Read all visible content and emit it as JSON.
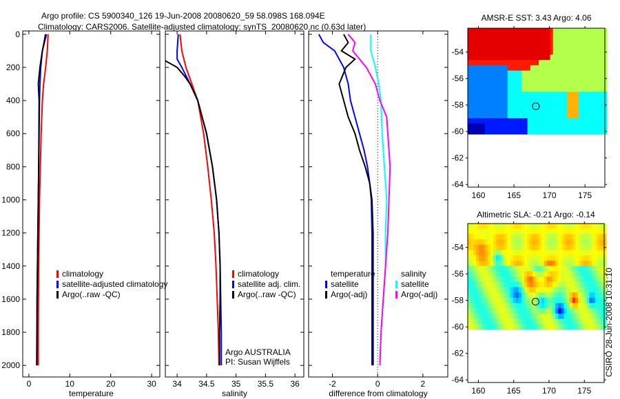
{
  "title": {
    "line1": "Argo profile: CS 5900340_126 19-Jun-2008 20080620_59 58.098S 168.094E",
    "line2": "Climatology: CARS2006. Satellite-adjusted climatology: synTS_20080620.nc (0.63d later)"
  },
  "colors": {
    "climatology": "#ff0000",
    "satellite": "#0000ff",
    "argo": "#000000",
    "sal_satellite": "#00ffff",
    "sal_argo": "#ff00ff"
  },
  "chart_data": [
    {
      "type": "line",
      "id": "temperature",
      "xlabel": "temperature",
      "xlim": [
        -1.5,
        32
      ],
      "ylim": [
        -20,
        2070
      ],
      "xticks": [
        0,
        10,
        20,
        30
      ],
      "yticks": [
        0,
        200,
        400,
        600,
        800,
        1000,
        1200,
        1400,
        1600,
        1800,
        2000
      ],
      "legend": [
        "climatology",
        "satellite-adjusted climatology",
        "Argo(..raw -QC)"
      ],
      "series": [
        {
          "name": "climatology",
          "color": "#ff0000",
          "depth": [
            0,
            100,
            200,
            300,
            400,
            600,
            800,
            1000,
            1200,
            1400,
            1600,
            1800,
            2000
          ],
          "values": [
            4.7,
            4.5,
            4.1,
            3.6,
            3.3,
            3.0,
            2.8,
            2.6,
            2.5,
            2.4,
            2.35,
            2.3,
            2.3
          ]
        },
        {
          "name": "satellite-adjusted climatology",
          "color": "#0000ff",
          "depth": [
            0,
            100,
            200,
            300,
            400,
            600,
            800,
            1000,
            1200,
            1400,
            1600,
            1800,
            2000
          ],
          "values": [
            4.3,
            3.3,
            2.9,
            2.7,
            2.6,
            2.5,
            2.4,
            2.3,
            2.2,
            2.1,
            2.0,
            1.95,
            1.9
          ]
        },
        {
          "name": "Argo(..raw -QC)",
          "color": "#000000",
          "depth": [
            0,
            50,
            100,
            200,
            300,
            400,
            600,
            800,
            1000,
            1200,
            1400,
            1600,
            1800,
            2000
          ],
          "values": [
            4.06,
            3.7,
            3.3,
            2.7,
            2.3,
            2.5,
            2.45,
            2.4,
            2.3,
            2.2,
            2.1,
            2.0,
            2.0,
            1.95
          ]
        }
      ]
    },
    {
      "type": "line",
      "id": "salinity",
      "xlabel": "salinity",
      "xlim": [
        33.8,
        36.15
      ],
      "ylim": [
        -20,
        2070
      ],
      "xticks": [
        34,
        34.5,
        35,
        35.5,
        36
      ],
      "legend": [
        "climatology",
        "satellite adj. clim.",
        "Argo(..raw -QC)"
      ],
      "annotation": [
        "Argo AUSTRALIA",
        "PI: Susan Wijffels"
      ],
      "series": [
        {
          "name": "climatology",
          "color": "#ff0000",
          "depth": [
            0,
            100,
            200,
            300,
            400,
            600,
            800,
            1000,
            1200,
            1400,
            1600,
            1800,
            2000
          ],
          "values": [
            34.05,
            34.08,
            34.15,
            34.25,
            34.35,
            34.45,
            34.52,
            34.58,
            34.63,
            34.66,
            34.68,
            34.7,
            34.71
          ]
        },
        {
          "name": "satellite adj. clim.",
          "color": "#0000ff",
          "depth": [
            0,
            100,
            150,
            200,
            300,
            400,
            600,
            800,
            1000,
            1200,
            1400,
            1600,
            1800,
            2000
          ],
          "values": [
            34.02,
            34.0,
            34.0,
            34.08,
            34.22,
            34.35,
            34.5,
            34.6,
            34.67,
            34.71,
            34.73,
            34.74,
            34.75,
            34.75
          ]
        },
        {
          "name": "Argo(..raw -QC)",
          "color": "#000000",
          "depth": [
            160,
            200,
            250,
            300,
            400,
            600,
            800,
            1000,
            1200,
            1400,
            1600,
            1800,
            2000
          ],
          "values": [
            33.8,
            34.0,
            34.12,
            34.22,
            34.35,
            34.5,
            34.6,
            34.67,
            34.71,
            34.73,
            34.73,
            34.72,
            34.72
          ]
        }
      ]
    },
    {
      "type": "line",
      "id": "difference",
      "xlabel": "difference from climatology",
      "xlim": [
        -3.05,
        3.1
      ],
      "ylim": [
        -20,
        2070
      ],
      "xticks": [
        -2,
        0,
        2
      ],
      "legend_temperature_title": "temperature",
      "legend_salinity_title": "salinity",
      "legend": [
        "satellite",
        "Argo(-adj)",
        "satellite",
        "Argo(-adj)"
      ],
      "series": [
        {
          "name": "temperature satellite",
          "color": "#0000ff",
          "depth": [
            0,
            50,
            100,
            200,
            300,
            400,
            500,
            600,
            700,
            800,
            900,
            1000,
            1200,
            1600,
            2000
          ],
          "values": [
            -2.6,
            -2.4,
            -1.9,
            -1.5,
            -1.3,
            -1.2,
            -1.0,
            -0.8,
            -0.6,
            -0.45,
            -0.35,
            -0.28,
            -0.25,
            -0.25,
            -0.25
          ]
        },
        {
          "name": "temperature Argo(-adj)",
          "color": "#000000",
          "depth": [
            0,
            50,
            100,
            150,
            200,
            300,
            400,
            500,
            600,
            700,
            800,
            900,
            1000,
            1200,
            1600,
            2000
          ],
          "values": [
            -1.5,
            -1.3,
            -1.6,
            -1.0,
            -1.4,
            -1.7,
            -1.5,
            -1.3,
            -1.0,
            -0.8,
            -0.55,
            -0.35,
            -0.25,
            -0.2,
            -0.2,
            -0.2
          ]
        },
        {
          "name": "salinity satellite",
          "color": "#00ffff",
          "depth": [
            0,
            100,
            200,
            300,
            400,
            600,
            800,
            1000,
            1200,
            1400,
            1600,
            1800,
            2000
          ],
          "values": [
            -0.3,
            -0.3,
            -0.1,
            0.05,
            0.15,
            0.2,
            0.3,
            0.4,
            0.35,
            0.35,
            0.25,
            0.15,
            0.1
          ]
        },
        {
          "name": "salinity Argo(-adj)",
          "color": "#ff00ff",
          "depth": [
            0,
            50,
            100,
            200,
            300,
            400,
            500,
            600,
            800,
            1000,
            1200,
            1400,
            1600,
            1800,
            2000
          ],
          "values": [
            -1.3,
            -1.0,
            -1.1,
            -0.5,
            -0.1,
            0.1,
            0.4,
            0.45,
            0.55,
            0.5,
            0.45,
            0.35,
            0.25,
            0.15,
            0.1
          ]
        }
      ]
    },
    {
      "type": "heatmap",
      "id": "sst-map",
      "title": "AMSR-E SST: 3.43 Argo: 4.06",
      "xlim": [
        158.5,
        177.8
      ],
      "ylim": [
        -64.2,
        -52.2
      ],
      "xticks": [
        160,
        165,
        170,
        175
      ],
      "yticks": [
        -54,
        -56,
        -58,
        -60,
        -62,
        -64
      ],
      "marker": {
        "lon": 168.094,
        "lat": -58.098
      }
    },
    {
      "type": "heatmap",
      "id": "sla-map",
      "title": "Altimetric SLA: -0.21 Argo: -0.14",
      "xlim": [
        158.5,
        177.8
      ],
      "ylim": [
        -64.2,
        -52.2
      ],
      "xticks": [
        160,
        165,
        170,
        175
      ],
      "yticks": [
        -54,
        -56,
        -58,
        -60,
        -62,
        -64
      ],
      "marker": {
        "lon": 168.094,
        "lat": -58.098
      }
    }
  ],
  "footer": "CSIRO 28-Jun-2008 10:31:10"
}
